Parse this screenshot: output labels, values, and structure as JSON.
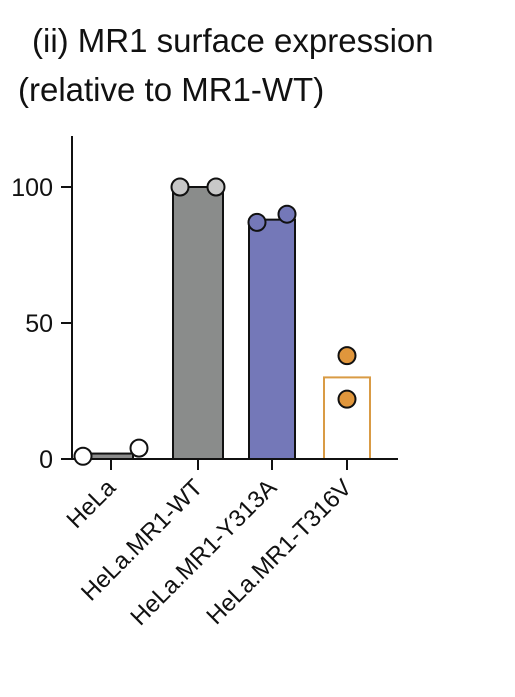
{
  "chart_data": {
    "type": "bar",
    "title_lines": [
      "(ii) MR1 surface expression",
      "(relative to MR1-WT)"
    ],
    "categories": [
      "HeLa",
      "HeLa.MR1-WT",
      "HeLa.MR1-Y313A",
      "HeLa.MR1-T316V"
    ],
    "values": [
      2,
      100,
      88,
      30
    ],
    "points": [
      [
        1,
        4
      ],
      [
        100,
        100
      ],
      [
        87,
        90
      ],
      [
        38,
        22
      ]
    ],
    "bar_styles": [
      {
        "fill": "#8c8c8c",
        "stroke": "#111111"
      },
      {
        "fill": "#8a8c8b",
        "stroke": "#111111"
      },
      {
        "fill": "#7478b8",
        "stroke": "#111111"
      },
      {
        "fill": "#ffffff",
        "stroke": "#d99b45"
      }
    ],
    "point_colors": [
      "#ffffff",
      "#c8c8c8",
      "#7478b8",
      "#e0963c"
    ],
    "yticks": [
      0,
      50,
      100
    ],
    "ytick_labels": [
      "0",
      "50",
      "100"
    ],
    "ylim": [
      0,
      120
    ],
    "xlabel": "",
    "ylabel": "",
    "grid": false,
    "legend": "none"
  }
}
